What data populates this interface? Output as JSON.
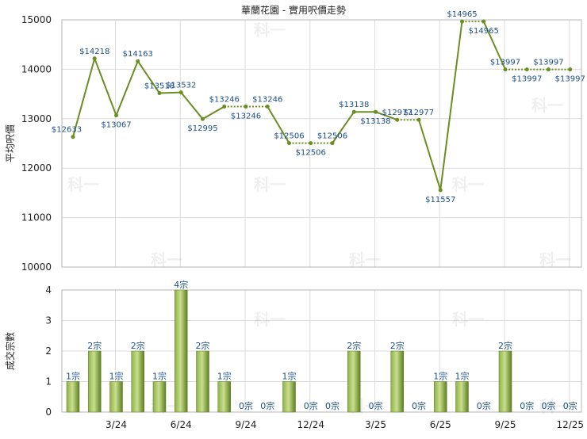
{
  "chart_data": [
    {
      "type": "line",
      "title": "華蘭花園 - 實用呎價走勢",
      "xlabel": "",
      "ylabel": "平均呎價",
      "ylim": [
        10000,
        15000
      ],
      "yticks": [
        10000,
        11000,
        12000,
        13000,
        14000,
        15000
      ],
      "grid": true,
      "watermark": "科一",
      "line_color": "#6b8e23",
      "label_color": "#1a4f8a",
      "points": [
        {
          "x": 0,
          "y": 12633,
          "label": "$12633",
          "dotted_next": false
        },
        {
          "x": 1,
          "y": 14218,
          "label": "$14218",
          "dotted_next": false
        },
        {
          "x": 2,
          "y": 13067,
          "label": "$13067",
          "dotted_next": false
        },
        {
          "x": 3,
          "y": 14163,
          "label": "$14163",
          "dotted_next": false
        },
        {
          "x": 4,
          "y": 13518,
          "label": "$13518",
          "dotted_next": false
        },
        {
          "x": 5,
          "y": 13532,
          "label": "$13532",
          "dotted_next": false
        },
        {
          "x": 6,
          "y": 12995,
          "label": "$12995",
          "dotted_next": false
        },
        {
          "x": 7,
          "y": 13246,
          "label": "$13246",
          "dotted_next": true
        },
        {
          "x": 8,
          "y": 13246,
          "label": "$13246",
          "dotted_next": true
        },
        {
          "x": 9,
          "y": 13246,
          "label": "$13246",
          "dotted_next": false
        },
        {
          "x": 10,
          "y": 12506,
          "label": "$12506",
          "dotted_next": true
        },
        {
          "x": 11,
          "y": 12506,
          "label": "$12506",
          "dotted_next": true
        },
        {
          "x": 12,
          "y": 12506,
          "label": "$12506",
          "dotted_next": false
        },
        {
          "x": 13,
          "y": 13138,
          "label": "$13138",
          "dotted_next": false
        },
        {
          "x": 14,
          "y": 13138,
          "label": "$13138",
          "dotted_next": false
        },
        {
          "x": 15,
          "y": 12977,
          "label": "$12977",
          "dotted_next": true
        },
        {
          "x": 16,
          "y": 12977,
          "label": "$12977",
          "dotted_next": false
        },
        {
          "x": 17,
          "y": 11557,
          "label": "$11557",
          "dotted_next": false
        },
        {
          "x": 18,
          "y": 14965,
          "label": "$14965",
          "dotted_next": true
        },
        {
          "x": 19,
          "y": 14965,
          "label": "$14965",
          "dotted_next": false
        },
        {
          "x": 20,
          "y": 13997,
          "label": "$13997",
          "dotted_next": true
        },
        {
          "x": 21,
          "y": 13997,
          "label": "$13997",
          "dotted_next": true
        },
        {
          "x": 22,
          "y": 13997,
          "label": "$13997",
          "dotted_next": true
        },
        {
          "x": 23,
          "y": 13997,
          "label": "$13997",
          "dotted_next": false
        }
      ]
    },
    {
      "type": "bar",
      "title": "",
      "xlabel": "",
      "ylabel": "成交宗數",
      "ylim": [
        0,
        4
      ],
      "yticks": [
        0,
        1,
        2,
        3,
        4
      ],
      "grid": true,
      "bar_color": "#6b8e23",
      "label_color": "#1a4f8a",
      "categories": [
        "",
        "",
        "3/24",
        "",
        "",
        "6/24",
        "",
        "",
        "9/24",
        "",
        "",
        "12/24",
        "",
        "",
        "3/25",
        "",
        "",
        "6/25",
        "",
        "",
        "9/25",
        "",
        "",
        "12/25"
      ],
      "values": [
        1,
        2,
        1,
        2,
        1,
        4,
        2,
        1,
        0,
        0,
        1,
        0,
        0,
        2,
        0,
        2,
        0,
        1,
        1,
        0,
        2,
        0,
        0,
        0
      ],
      "value_labels": [
        "1宗",
        "2宗",
        "1宗",
        "2宗",
        "1宗",
        "4宗",
        "2宗",
        "1宗",
        "0宗",
        "0宗",
        "1宗",
        "0宗",
        "0宗",
        "2宗",
        "0宗",
        "2宗",
        "0宗",
        "1宗",
        "1宗",
        "0宗",
        "2宗",
        "0宗",
        "0宗",
        "0宗"
      ]
    }
  ]
}
